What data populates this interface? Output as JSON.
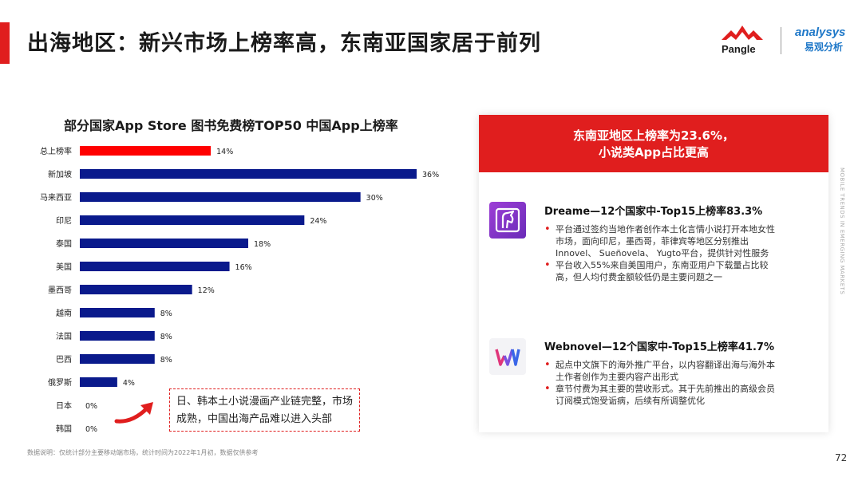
{
  "page": {
    "title": "出海地区：新兴市场上榜率高，东南亚国家居于前列",
    "page_number": "72",
    "footnote": "数据说明：仅统计部分主要移动端市场，统计时间为2022年1月初，数据仅供参考",
    "side_text": "MOBILE TRENDS IN EMERGING MARKETS"
  },
  "logos": {
    "pangle": "Pangle",
    "analysys": "analysys",
    "analysys_cn": "易观分析"
  },
  "colors": {
    "accent": "#e01e1e",
    "bar_highlight": "#ff0000",
    "bar_default": "#0a1a8c"
  },
  "chart_data": {
    "type": "bar",
    "orientation": "horizontal",
    "title": "部分国家App Store 图书免费榜TOP50 中国App上榜率",
    "categories": [
      "总上榜率",
      "新加坡",
      "马来西亚",
      "印尼",
      "泰国",
      "美国",
      "墨西哥",
      "越南",
      "法国",
      "巴西",
      "俄罗斯",
      "日本",
      "韩国"
    ],
    "values": [
      14,
      36,
      30,
      24,
      18,
      16,
      12,
      8,
      8,
      8,
      4,
      0,
      0
    ],
    "value_labels": [
      "14%",
      "36%",
      "30%",
      "24%",
      "18%",
      "16%",
      "12%",
      "8%",
      "8%",
      "8%",
      "4%",
      "0%",
      "0%"
    ],
    "highlight_index": 0,
    "unit": "%",
    "xlim": [
      0,
      36
    ],
    "grid": false,
    "legend": "none"
  },
  "callout": {
    "text": "日、韩本土小说漫画产业链完整，市场成熟，中国出海产品难以进入头部"
  },
  "panel": {
    "header_line1": "东南亚地区上榜率为23.6%，",
    "header_line2": "小说类App占比更高",
    "apps": [
      {
        "icon": "dreame-unicorn-icon",
        "name": "Dreame—12个国家中-Top15上榜率83.3%",
        "bullets": [
          "平台通过签约当地作者创作本土化言情小说打开本地女性市场，面向印尼，墨西哥，菲律宾等地区分别推出Innovel、 Sueñovela、 Yugto平台，提供针对性服务",
          "平台收入55%来自美国用户，东南亚用户下载量占比较高，但人均付费金额较低仍是主要问题之一"
        ]
      },
      {
        "icon": "webnovel-logo-icon",
        "name": "Webnovel—12个国家中-Top15上榜率41.7%",
        "bullets": [
          "起点中文旗下的海外推广平台，以内容翻译出海与海外本土作者创作为主要内容产出形式",
          "章节付费为其主要的营收形式。其于先前推出的高级会员订阅模式饱受诟病，后续有所调整优化"
        ]
      }
    ]
  }
}
